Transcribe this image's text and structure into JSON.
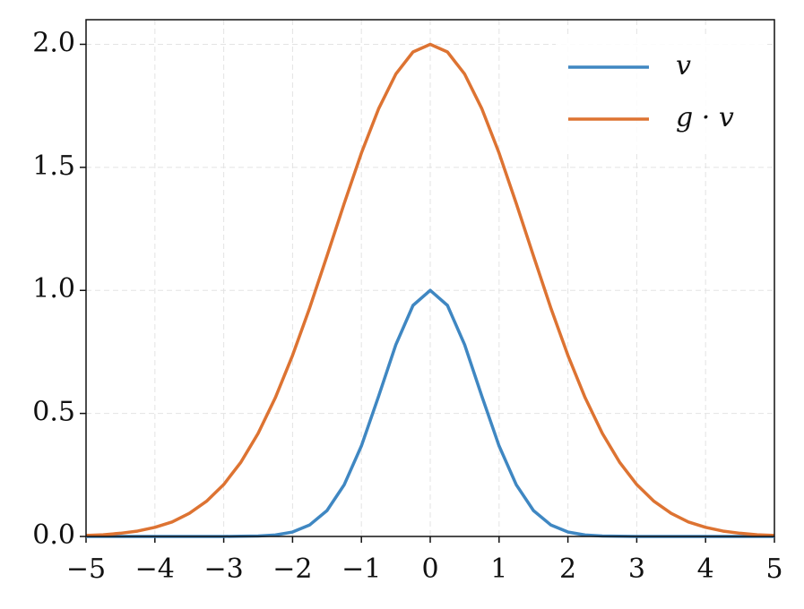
{
  "chart_data": {
    "type": "line",
    "x": [
      -5,
      -4.75,
      -4.5,
      -4.25,
      -4,
      -3.75,
      -3.5,
      -3.25,
      -3,
      -2.75,
      -2.5,
      -2.25,
      -2,
      -1.75,
      -1.5,
      -1.25,
      -1,
      -0.75,
      -0.5,
      -0.25,
      0,
      0.25,
      0.5,
      0.75,
      1,
      1.25,
      1.5,
      1.75,
      2,
      2.25,
      2.5,
      2.75,
      3,
      3.25,
      3.5,
      3.75,
      4,
      4.25,
      4.5,
      4.75,
      5
    ],
    "series": [
      {
        "name": "v",
        "color": "#3f87c2",
        "values": [
          0,
          0,
          0,
          0,
          0,
          0,
          0,
          0,
          0,
          0.001,
          0.002,
          0.006,
          0.018,
          0.047,
          0.105,
          0.21,
          0.368,
          0.57,
          0.779,
          0.939,
          1,
          0.939,
          0.779,
          0.57,
          0.368,
          0.21,
          0.105,
          0.047,
          0.018,
          0.006,
          0.002,
          0.001,
          0,
          0,
          0,
          0,
          0,
          0,
          0,
          0,
          0
        ]
      },
      {
        "name": "g · v",
        "color": "#dd7332",
        "values": [
          0.004,
          0.007,
          0.013,
          0.022,
          0.037,
          0.059,
          0.094,
          0.143,
          0.211,
          0.302,
          0.419,
          0.564,
          0.736,
          0.93,
          1.14,
          1.353,
          1.558,
          1.738,
          1.879,
          1.969,
          2,
          1.969,
          1.879,
          1.738,
          1.558,
          1.353,
          1.14,
          0.93,
          0.736,
          0.564,
          0.419,
          0.302,
          0.211,
          0.143,
          0.094,
          0.059,
          0.037,
          0.022,
          0.013,
          0.007,
          0.004
        ]
      }
    ],
    "xlim": [
      -5,
      5
    ],
    "xticks": [
      {
        "value": -5,
        "label": "−5"
      },
      {
        "value": -4,
        "label": "−4"
      },
      {
        "value": -3,
        "label": "−3"
      },
      {
        "value": -2,
        "label": "−2"
      },
      {
        "value": -1,
        "label": "−1"
      },
      0,
      1,
      2,
      3,
      4,
      5
    ],
    "ylim": [
      0,
      2.1
    ],
    "yticks": [
      {
        "value": 0,
        "label": "0.0"
      },
      0.5,
      {
        "value": 1,
        "label": "1.0"
      },
      1.5,
      {
        "value": 2,
        "label": "2.0"
      }
    ],
    "grid": true,
    "legend": "upper-right"
  }
}
